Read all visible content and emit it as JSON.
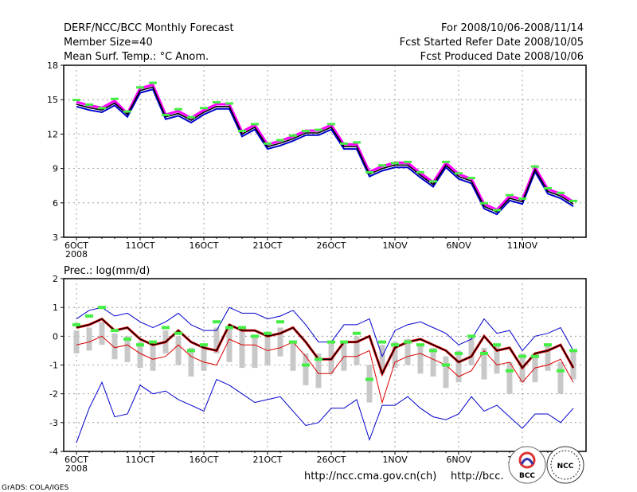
{
  "header": {
    "title": "DERF/NCC/BCC Monthly Forecast",
    "member_size": "Member Size=40",
    "variable": "Mean Surf. Temp.: °C Anom.",
    "period": "For 2008/10/06-2008/11/14",
    "started": "Fcst Started Refer Date 2008/10/05",
    "produced": "Fcst Produced Date 2008/10/06"
  },
  "footer": {
    "grads": "GrADS: COLA/IGES",
    "url1": "http://ncc.cma.gov.cn(ch)",
    "url2": "http://bcc.",
    "logo_bcc": "BCC",
    "logo_ncc": "NCC"
  },
  "colors": {
    "black": "#000000",
    "magenta": "#ff00ff",
    "blue": "#0000cc",
    "red": "#dd0000",
    "green": "#44ee44",
    "grey": "#c8c8c8"
  },
  "chart_data": [
    {
      "type": "line",
      "title": "Mean Surf. Temp.: °C Anom.",
      "x_ticks": [
        "6OCT",
        "11OCT",
        "16OCT",
        "21OCT",
        "26OCT",
        "1NOV",
        "6NOV",
        "11NOV"
      ],
      "x_tick_year": "2008",
      "days": 40,
      "ylim": [
        3,
        18
      ],
      "yticks": [
        "3",
        "6",
        "9",
        "12",
        "15",
        "18"
      ],
      "series": [
        {
          "name": "mean",
          "values": [
            14.6,
            14.3,
            14.1,
            14.7,
            13.7,
            15.8,
            16.1,
            13.5,
            13.8,
            13.2,
            13.9,
            14.4,
            14.4,
            12.0,
            12.6,
            10.9,
            11.2,
            11.6,
            12.1,
            12.1,
            12.6,
            10.9,
            10.9,
            8.5,
            9.0,
            9.3,
            9.3,
            8.4,
            7.6,
            9.3,
            8.3,
            7.9,
            5.7,
            5.2,
            6.4,
            6.1,
            8.9,
            7.0,
            6.6,
            5.9
          ]
        },
        {
          "name": "upper",
          "values": [
            14.8,
            14.5,
            14.3,
            14.9,
            13.8,
            16.0,
            16.3,
            13.7,
            14.0,
            13.4,
            14.1,
            14.6,
            14.6,
            12.2,
            12.8,
            11.1,
            11.4,
            11.8,
            12.3,
            12.3,
            12.8,
            11.1,
            11.1,
            8.7,
            9.2,
            9.5,
            9.5,
            8.6,
            7.8,
            9.5,
            8.5,
            8.1,
            5.9,
            5.4,
            6.6,
            6.3,
            9.1,
            7.2,
            6.8,
            6.1
          ]
        },
        {
          "name": "lower",
          "values": [
            14.4,
            14.1,
            13.9,
            14.5,
            13.5,
            15.6,
            15.9,
            13.3,
            13.6,
            13.0,
            13.7,
            14.2,
            14.2,
            11.8,
            12.4,
            10.7,
            11.0,
            11.4,
            11.9,
            11.9,
            12.4,
            10.7,
            10.7,
            8.3,
            8.8,
            9.1,
            9.1,
            8.2,
            7.4,
            9.1,
            8.1,
            7.7,
            5.5,
            5.0,
            6.2,
            5.9,
            8.7,
            6.8,
            6.4,
            5.7
          ]
        },
        {
          "name": "observed-marks",
          "values": [
            14.9,
            14.5,
            14.2,
            15.0,
            13.9,
            16.0,
            16.4,
            13.6,
            14.1,
            13.4,
            14.2,
            14.7,
            14.6,
            12.2,
            12.8,
            11.1,
            11.4,
            11.8,
            12.2,
            12.3,
            12.8,
            11.1,
            11.2,
            8.6,
            9.2,
            9.4,
            9.5,
            8.6,
            7.8,
            9.5,
            8.5,
            8.1,
            5.9,
            5.3,
            6.6,
            6.3,
            9.1,
            7.2,
            6.8,
            6.1
          ]
        }
      ]
    },
    {
      "type": "line",
      "title": "Prec.: log(mm/d)",
      "x_ticks": [
        "6OCT",
        "11OCT",
        "16OCT",
        "21OCT",
        "26OCT",
        "1NOV",
        "6NOV",
        "11NOV"
      ],
      "x_tick_year": "2008",
      "days": 40,
      "ylim": [
        -4,
        2
      ],
      "yticks": [
        "-4",
        "-3",
        "-2",
        "-1",
        "0",
        "1",
        "2"
      ],
      "series": [
        {
          "name": "mean",
          "values": [
            0.3,
            0.4,
            0.6,
            0.2,
            0.3,
            -0.1,
            -0.3,
            -0.2,
            0.2,
            -0.2,
            -0.4,
            -0.5,
            0.4,
            0.2,
            0.2,
            0.0,
            0.1,
            0.3,
            -0.2,
            -0.8,
            -0.8,
            -0.2,
            -0.2,
            0.0,
            -1.3,
            -0.4,
            -0.2,
            -0.1,
            -0.3,
            -0.5,
            -0.9,
            -0.7,
            0.0,
            -0.5,
            -0.4,
            -1.1,
            -0.6,
            -0.5,
            -0.3,
            -1.1
          ]
        },
        {
          "name": "upper",
          "values": [
            0.6,
            0.9,
            1.0,
            0.7,
            0.8,
            0.5,
            0.3,
            0.5,
            0.8,
            0.4,
            0.2,
            0.2,
            1.0,
            0.8,
            0.8,
            0.6,
            0.7,
            0.9,
            0.4,
            -0.2,
            -0.2,
            0.4,
            0.4,
            0.6,
            -0.7,
            0.2,
            0.4,
            0.5,
            0.3,
            0.1,
            -0.3,
            -0.1,
            0.6,
            0.1,
            0.2,
            -0.5,
            0.0,
            0.1,
            0.3,
            -0.5
          ]
        },
        {
          "name": "lower",
          "values": [
            -3.7,
            -2.5,
            -1.6,
            -2.8,
            -2.7,
            -1.7,
            -2.0,
            -1.9,
            -2.2,
            -2.4,
            -2.6,
            -1.5,
            -1.7,
            -2.0,
            -2.3,
            -2.2,
            -2.1,
            -2.6,
            -3.1,
            -3.0,
            -2.5,
            -2.5,
            -2.2,
            -3.6,
            -2.4,
            -2.4,
            -2.1,
            -2.5,
            -2.8,
            -2.9,
            -2.7,
            -2.1,
            -2.6,
            -2.4,
            -2.8,
            -3.2,
            -2.7,
            -2.7,
            -3.0,
            -2.5
          ]
        },
        {
          "name": "lower-mean",
          "values": [
            -0.3,
            -0.2,
            0.0,
            -0.4,
            -0.3,
            -0.6,
            -0.8,
            -0.7,
            -0.3,
            -0.7,
            -0.9,
            -1.0,
            -0.1,
            -0.3,
            -0.3,
            -0.5,
            -0.4,
            -0.2,
            -0.7,
            -1.3,
            -1.3,
            -0.7,
            -0.7,
            -0.5,
            -2.3,
            -0.9,
            -0.7,
            -0.6,
            -0.8,
            -1.0,
            -1.4,
            -1.2,
            -0.5,
            -1.0,
            -0.9,
            -1.6,
            -1.1,
            -1.0,
            -0.8,
            -1.6
          ]
        },
        {
          "name": "observed-marks",
          "values": [
            0.4,
            0.7,
            1.0,
            0.2,
            -0.1,
            -0.3,
            -0.2,
            0.3,
            0.1,
            -0.5,
            -0.3,
            0.5,
            0.3,
            0.3,
            0.0,
            0.1,
            0.5,
            -0.2,
            -1.0,
            -0.8,
            -0.2,
            -0.2,
            0.1,
            -1.5,
            -0.2,
            -0.3,
            -0.2,
            -0.3,
            -0.5,
            -1.0,
            -0.6,
            0.0,
            -0.6,
            -0.3,
            -1.2,
            -0.7,
            -0.7,
            -0.3,
            -1.2,
            -0.5
          ]
        },
        {
          "name": "spread-high",
          "values": [
            0.2,
            0.3,
            0.5,
            0.1,
            0.0,
            -0.2,
            -0.3,
            0.2,
            0.0,
            -0.4,
            -0.3,
            0.3,
            0.3,
            0.2,
            0.0,
            0.0,
            0.3,
            -0.2,
            -0.6,
            -0.6,
            -0.2,
            -0.2,
            0.0,
            -1.0,
            -0.3,
            -0.2,
            -0.1,
            -0.3,
            -0.4,
            -0.7,
            -0.5,
            0.0,
            -0.4,
            -0.3,
            -0.9,
            -0.6,
            -0.6,
            -0.3,
            -0.9,
            -0.5
          ]
        },
        {
          "name": "spread-low",
          "values": [
            -0.6,
            -0.5,
            -0.3,
            -0.8,
            -0.9,
            -1.1,
            -1.2,
            -0.6,
            -1.0,
            -1.4,
            -1.2,
            -0.6,
            -0.9,
            -1.1,
            -1.1,
            -1.0,
            -0.7,
            -1.2,
            -1.7,
            -1.8,
            -1.3,
            -1.2,
            -1.0,
            -2.3,
            -1.3,
            -1.1,
            -1.0,
            -1.3,
            -1.4,
            -1.8,
            -1.6,
            -1.0,
            -1.5,
            -1.3,
            -2.0,
            -1.6,
            -1.6,
            -1.2,
            -2.0,
            -1.5
          ]
        }
      ]
    }
  ]
}
